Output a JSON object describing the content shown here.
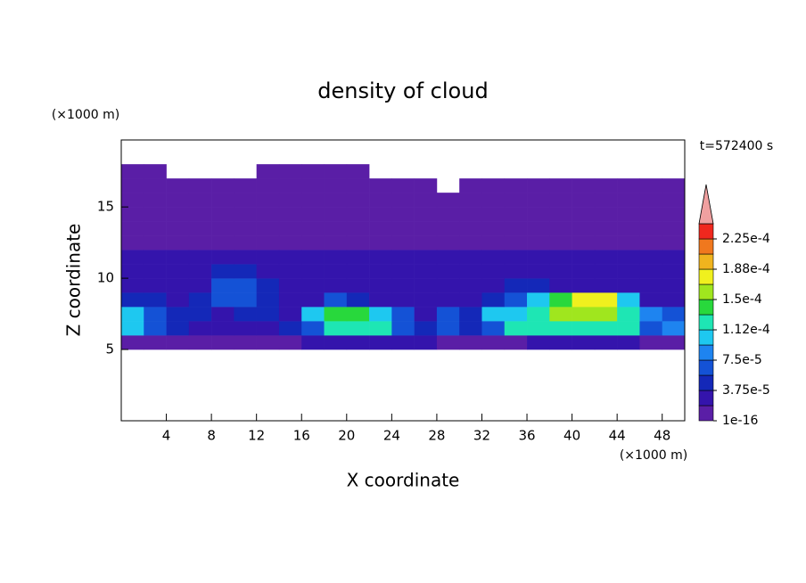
{
  "chart_data": {
    "type": "contour",
    "title": "density of cloud",
    "xlabel": "X coordinate",
    "ylabel": "Z coordinate",
    "xunit": "(×1000 m)",
    "yunit": "(×1000 m)",
    "annotation": "t=572400 s",
    "xlim": [
      0,
      50
    ],
    "ylim": [
      0,
      19.7
    ],
    "xticks": [
      4,
      8,
      12,
      16,
      20,
      24,
      28,
      32,
      36,
      40,
      44,
      48
    ],
    "yticks": [
      5,
      10,
      15
    ],
    "xbins": [
      0,
      2,
      4,
      6,
      8,
      10,
      12,
      14,
      16,
      18,
      20,
      22,
      24,
      26,
      28,
      30,
      32,
      34,
      36,
      38,
      40,
      42,
      44,
      46,
      48,
      50
    ],
    "ybins": [
      5,
      6,
      7,
      8,
      9,
      10,
      11,
      12,
      13,
      14,
      15,
      16,
      17,
      18
    ],
    "z": [
      [
        5e-06,
        5e-06,
        5e-06,
        5e-06,
        5e-06,
        5e-06,
        5e-06,
        5e-06,
        2.5e-05,
        2.5e-05,
        2.5e-05,
        2.5e-05,
        2.5e-05,
        2.5e-05,
        5e-06,
        5e-06,
        5e-06,
        5e-06,
        2.5e-05,
        2.5e-05,
        2.5e-05,
        2.5e-05,
        2.5e-05,
        5e-06,
        5e-06
      ],
      [
        0.0001,
        6e-05,
        4e-05,
        2.5e-05,
        2.5e-05,
        2.5e-05,
        2.5e-05,
        4e-05,
        6e-05,
        0.00012,
        0.00012,
        0.00012,
        6e-05,
        4e-05,
        6e-05,
        4e-05,
        6e-05,
        0.00012,
        0.00012,
        0.00012,
        0.00012,
        0.00012,
        0.00012,
        6e-05,
        8e-05
      ],
      [
        0.0001,
        6e-05,
        4e-05,
        4e-05,
        2.5e-05,
        4e-05,
        4e-05,
        2.5e-05,
        0.0001,
        0.00014,
        0.00014,
        0.0001,
        6e-05,
        2.5e-05,
        6e-05,
        4e-05,
        0.0001,
        0.0001,
        0.00012,
        0.000155,
        0.000155,
        0.000155,
        0.00012,
        8e-05,
        6e-05
      ],
      [
        4e-05,
        4e-05,
        2.5e-05,
        4e-05,
        6e-05,
        6e-05,
        4e-05,
        2.5e-05,
        2.5e-05,
        6e-05,
        4e-05,
        2.5e-05,
        2.5e-05,
        2.5e-05,
        2.5e-05,
        2.5e-05,
        4e-05,
        6e-05,
        0.0001,
        0.00014,
        0.00017,
        0.00017,
        0.0001,
        2.5e-05,
        2.5e-05
      ],
      [
        2.5e-05,
        2.5e-05,
        2.5e-05,
        2.5e-05,
        6e-05,
        6e-05,
        4e-05,
        2.5e-05,
        2.5e-05,
        2.5e-05,
        2.5e-05,
        2.5e-05,
        2.5e-05,
        2.5e-05,
        2.5e-05,
        2.5e-05,
        2.5e-05,
        4e-05,
        4e-05,
        2.5e-05,
        2.5e-05,
        2.5e-05,
        2.5e-05,
        2.5e-05,
        2.5e-05
      ],
      [
        2.5e-05,
        2.5e-05,
        2.5e-05,
        2.5e-05,
        4e-05,
        4e-05,
        2.5e-05,
        2.5e-05,
        2.5e-05,
        2.5e-05,
        2.5e-05,
        2.5e-05,
        2.5e-05,
        2.5e-05,
        2.5e-05,
        2.5e-05,
        2.5e-05,
        2.5e-05,
        2.5e-05,
        2.5e-05,
        2.5e-05,
        2.5e-05,
        2.5e-05,
        2.5e-05,
        2.5e-05
      ],
      [
        2.5e-05,
        2.5e-05,
        2.5e-05,
        2.5e-05,
        2.5e-05,
        2.5e-05,
        2.5e-05,
        2.5e-05,
        2.5e-05,
        2.5e-05,
        2.5e-05,
        2.5e-05,
        2.5e-05,
        2.5e-05,
        2.5e-05,
        2.5e-05,
        2.5e-05,
        2.5e-05,
        2.5e-05,
        2.5e-05,
        2.5e-05,
        2.5e-05,
        2.5e-05,
        2.5e-05,
        2.5e-05
      ],
      [
        5e-06,
        5e-06,
        5e-06,
        5e-06,
        5e-06,
        5e-06,
        5e-06,
        5e-06,
        5e-06,
        5e-06,
        5e-06,
        5e-06,
        5e-06,
        5e-06,
        5e-06,
        5e-06,
        5e-06,
        5e-06,
        5e-06,
        5e-06,
        5e-06,
        5e-06,
        5e-06,
        5e-06,
        5e-06
      ],
      [
        5e-06,
        5e-06,
        5e-06,
        5e-06,
        5e-06,
        5e-06,
        5e-06,
        5e-06,
        5e-06,
        5e-06,
        5e-06,
        5e-06,
        5e-06,
        5e-06,
        5e-06,
        5e-06,
        5e-06,
        5e-06,
        5e-06,
        5e-06,
        5e-06,
        5e-06,
        5e-06,
        5e-06,
        5e-06
      ],
      [
        5e-06,
        5e-06,
        5e-06,
        5e-06,
        5e-06,
        5e-06,
        5e-06,
        5e-06,
        5e-06,
        5e-06,
        5e-06,
        5e-06,
        5e-06,
        5e-06,
        5e-06,
        5e-06,
        5e-06,
        5e-06,
        5e-06,
        5e-06,
        5e-06,
        5e-06,
        5e-06,
        5e-06,
        5e-06
      ],
      [
        5e-06,
        5e-06,
        5e-06,
        5e-06,
        5e-06,
        5e-06,
        5e-06,
        5e-06,
        5e-06,
        5e-06,
        5e-06,
        5e-06,
        5e-06,
        5e-06,
        5e-06,
        5e-06,
        5e-06,
        5e-06,
        5e-06,
        5e-06,
        5e-06,
        5e-06,
        5e-06,
        5e-06,
        5e-06
      ],
      [
        5e-06,
        5e-06,
        5e-06,
        5e-06,
        5e-06,
        5e-06,
        5e-06,
        5e-06,
        5e-06,
        5e-06,
        5e-06,
        5e-06,
        5e-06,
        5e-06,
        null,
        5e-06,
        5e-06,
        5e-06,
        5e-06,
        5e-06,
        5e-06,
        5e-06,
        5e-06,
        5e-06,
        5e-06
      ],
      [
        5e-06,
        5e-06,
        null,
        null,
        null,
        null,
        5e-06,
        5e-06,
        5e-06,
        5e-06,
        5e-06,
        null,
        null,
        null,
        null,
        null,
        null,
        null,
        null,
        null,
        null,
        null,
        null,
        null,
        null
      ]
    ],
    "levels": [
      1e-16,
      1.875e-05,
      3.75e-05,
      5.625e-05,
      7.5e-05,
      9.375e-05,
      0.0001125,
      0.00013125,
      0.00015,
      0.00016875,
      0.0001875,
      0.00020625,
      0.000225,
      0.00024375
    ],
    "colors": [
      "#5a1ea6",
      "#3414ac",
      "#1428b8",
      "#1452d6",
      "#1e84f0",
      "#1ec8f0",
      "#1ee6b4",
      "#28d83c",
      "#a0e61e",
      "#f0f01e",
      "#f0b41e",
      "#f0781e",
      "#f0281e"
    ],
    "extend_color": "#f0a0a0",
    "cbar_ticks": [
      {
        "value": 1e-16,
        "label": "1e-16"
      },
      {
        "value": 3.75e-05,
        "label": "3.75e-5"
      },
      {
        "value": 7.5e-05,
        "label": "7.5e-5"
      },
      {
        "value": 0.0001125,
        "label": "1.12e-4"
      },
      {
        "value": 0.00015,
        "label": "1.5e-4"
      },
      {
        "value": 0.0001875,
        "label": "1.88e-4"
      },
      {
        "value": 0.000225,
        "label": "2.25e-4"
      }
    ]
  }
}
